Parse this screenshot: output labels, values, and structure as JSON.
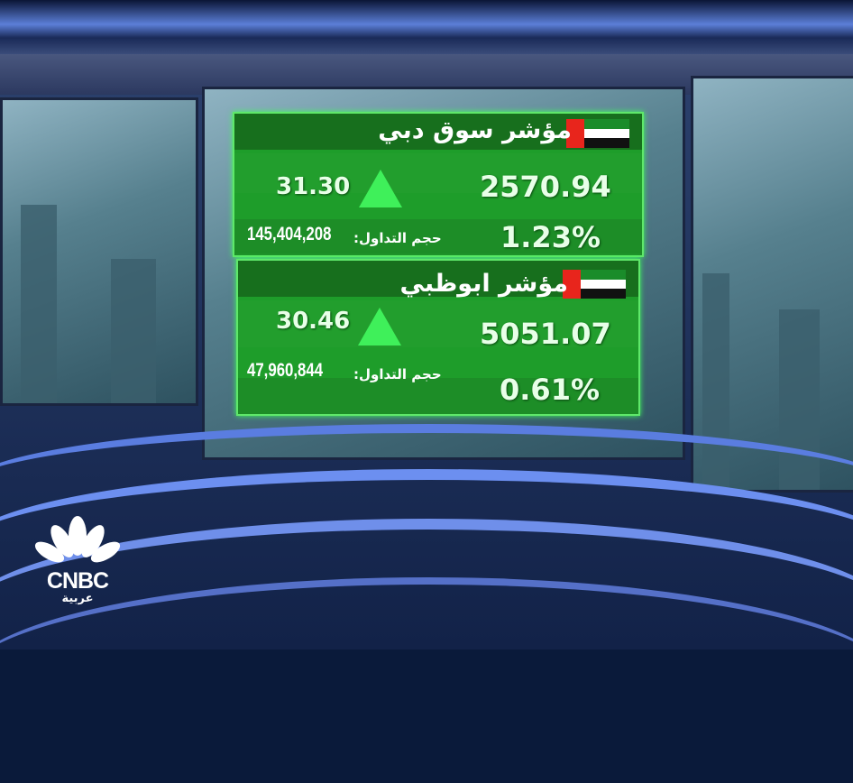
{
  "indices": [
    {
      "name": "مؤشر سوق دبي",
      "flag": "uae-flag-icon",
      "value": "2570.94",
      "change": "31.30",
      "direction": "up",
      "percent": "1.23%",
      "volume_label": "حجم التداول:",
      "volume": "145,404,208"
    },
    {
      "name": "مؤشر ابوظبي",
      "flag": "uae-flag-icon",
      "value": "5051.07",
      "change": "30.46",
      "direction": "up",
      "percent": "0.61%",
      "volume_label": "حجم التداول:",
      "volume": "47,960,844"
    }
  ],
  "logo": {
    "brand": "CNBC",
    "subtitle": "عربية"
  },
  "colors": {
    "card_green": "#1e9d2a",
    "arrow_up": "#3ff05a",
    "flag_red": "#e8251c"
  }
}
